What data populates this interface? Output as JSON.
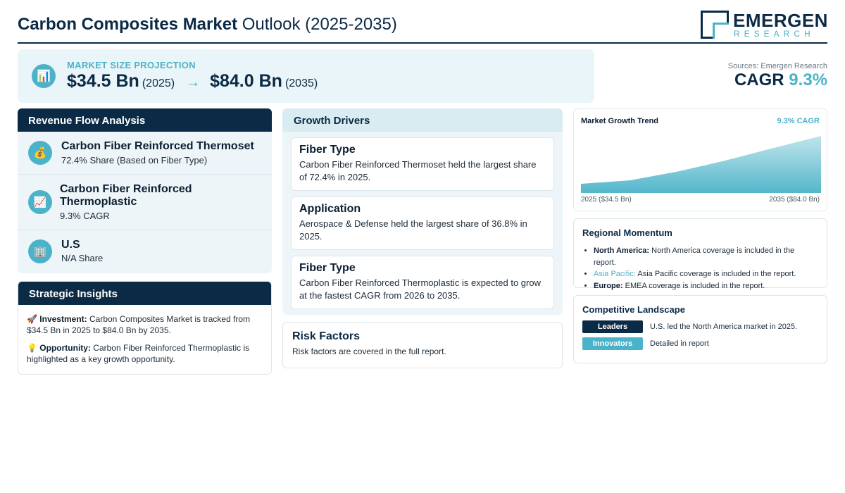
{
  "header": {
    "title_bold": "Carbon Composites Market",
    "title_rest": "Outlook (2025-2035)",
    "logo_name": "EMERGEN",
    "logo_sub": "RESEARCH"
  },
  "projection": {
    "label": "MARKET SIZE PROJECTION",
    "icon": "bar-chart-icon",
    "start_value": "$34.5 Bn",
    "start_year": "(2025)",
    "arrow": "→",
    "end_value": "$84.0 Bn",
    "end_year": "(2035)"
  },
  "sources": "Sources: Emergen Research",
  "cagr": {
    "label": "CAGR",
    "value": "9.3%"
  },
  "revenue_flow": {
    "title": "Revenue Flow Analysis",
    "items": [
      {
        "icon": "money-bag-icon",
        "title": "Carbon Fiber Reinforced Thermoset",
        "sub": "72.4% Share (Based on Fiber Type)"
      },
      {
        "icon": "trend-chart-icon",
        "title": "Carbon Fiber Reinforced Thermoplastic",
        "sub": "9.3% CAGR"
      },
      {
        "icon": "building-icon",
        "title": "U.S",
        "sub": "N/A Share"
      }
    ]
  },
  "strategic": {
    "title": "Strategic Insights",
    "investment_label": "Investment:",
    "investment_text": "Carbon Composites Market is tracked from $34.5 Bn in 2025 to $84.0 Bn by 2035.",
    "opportunity_label": "Opportunity:",
    "opportunity_text": "Carbon Fiber Reinforced Thermoplastic is highlighted as a key growth opportunity."
  },
  "drivers": {
    "title": "Growth Drivers",
    "cards": [
      {
        "title": "Fiber Type",
        "desc": "Carbon Fiber Reinforced Thermoset held the largest share of 72.4% in 2025."
      },
      {
        "title": "Application",
        "desc": "Aerospace & Defense held the largest share of 36.8% in 2025."
      },
      {
        "title": "Fiber Type",
        "desc": "Carbon Fiber Reinforced Thermoplastic is expected to grow at the fastest CAGR from 2026 to 2035."
      }
    ]
  },
  "risk": {
    "title": "Risk Factors",
    "desc": "Risk factors are covered in the full report."
  },
  "trend": {
    "title": "Market Growth Trend",
    "cagr_label": "9.3% CAGR",
    "start_label": "2025 ($34.5 Bn)",
    "end_label": "2035 ($84.0 Bn)"
  },
  "regional": {
    "title": "Regional Momentum",
    "items": [
      {
        "region": "North America:",
        "text": "North America coverage is included in the report."
      },
      {
        "region": "Asia Pacific:",
        "text": "Asia Pacific coverage is included in the report."
      },
      {
        "region": "Europe:",
        "text": "EMEA coverage is included in the report."
      }
    ]
  },
  "competitive": {
    "title": "Competitive Landscape",
    "rows": [
      {
        "badge": "Leaders",
        "text": "U.S. led the North America market in 2025."
      },
      {
        "badge": "Innovators",
        "text": "Detailed in report"
      }
    ]
  },
  "colors": {
    "navy": "#0b2a45",
    "accent": "#4bb3c9",
    "panel_bg": "#eef5f8"
  }
}
